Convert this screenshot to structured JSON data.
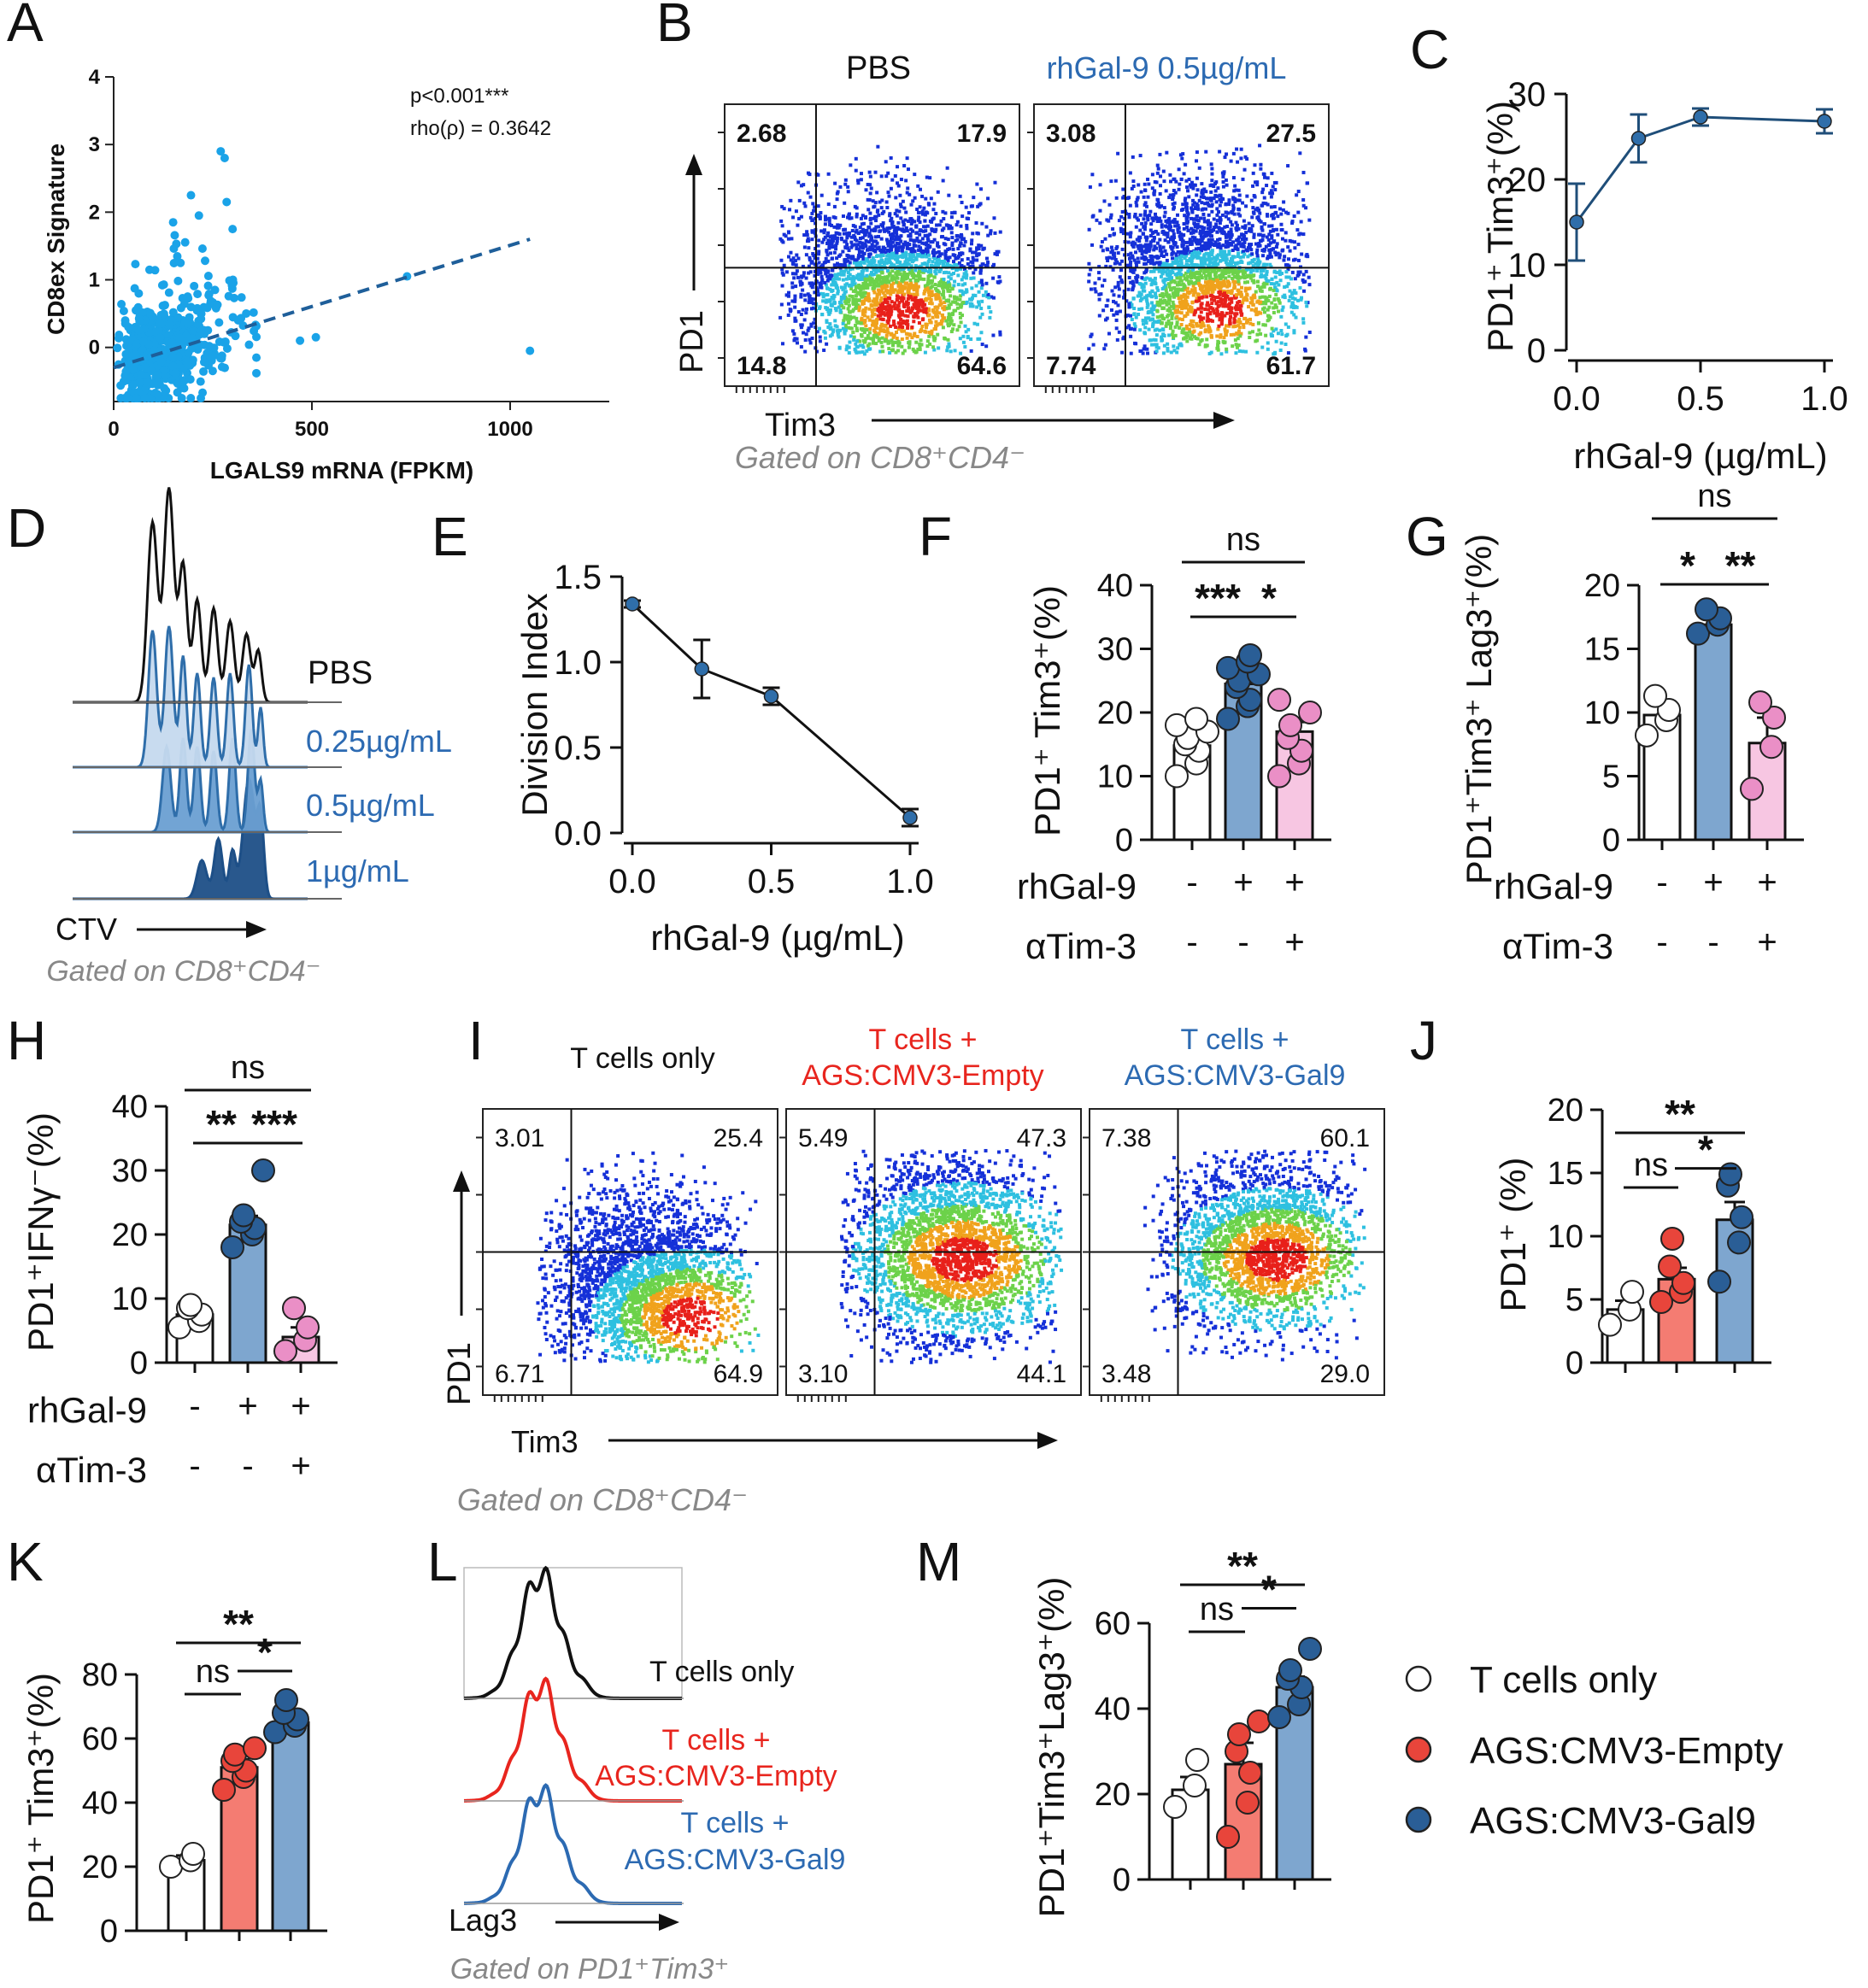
{
  "figure": {
    "panels": [
      "A",
      "B",
      "C",
      "D",
      "E",
      "F",
      "G",
      "H",
      "I",
      "J",
      "K",
      "L",
      "M"
    ]
  },
  "colors": {
    "scatter_blue": "#1aa3e8",
    "trend_blue": "#1f5f9a",
    "line_navy": "#1f4e79",
    "light_blue_fill": "#c5d9ee",
    "mid_blue_fill": "#6a9fd2",
    "dark_blue_fill": "#1d4f87",
    "bar_blue": "#7ea6cf",
    "dot_blue": "#2a5e96",
    "bar_pink": "#f7c6e2",
    "dot_pink": "#ea8fc6",
    "bar_red": "#f47c72",
    "dot_red": "#e8453b",
    "red_line": "#e8251e",
    "blue_line": "#2c6ab2",
    "gray_text": "#888888"
  },
  "chart_data": [
    {
      "panel": "A",
      "type": "scatter",
      "xlabel": "LGALS9 mRNA (FPKM)",
      "ylabel": "CD8ex Signature",
      "xticks": [
        "0",
        "500",
        "1000"
      ],
      "yticks": [
        "0",
        "1",
        "2",
        "3",
        "4"
      ],
      "xlim": [
        0,
        1250
      ],
      "ylim": [
        -0.8,
        4
      ],
      "annotation_p": "p<0.001***",
      "annotation_rho": "rho(ρ) = 0.3642",
      "trend": {
        "x": [
          0,
          1050
        ],
        "y": [
          -0.3,
          1.6
        ]
      },
      "outliers": [
        [
          1050,
          -0.05
        ],
        [
          740,
          1.05
        ],
        [
          510,
          0.15
        ],
        [
          470,
          0.1
        ]
      ]
    },
    {
      "panel": "C",
      "type": "line",
      "xlabel": "rhGal-9 (µg/mL)",
      "ylabel": "PD1⁺ Tim3⁺(%)",
      "xticks": [
        "0.0",
        "0.5",
        "1.0"
      ],
      "yticks": [
        "0",
        "10",
        "20",
        "30"
      ],
      "xlim": [
        0,
        1
      ],
      "ylim": [
        0,
        30
      ],
      "x": [
        0,
        0.25,
        0.5,
        1.0
      ],
      "y": [
        15,
        24.8,
        27.3,
        26.8
      ],
      "err": [
        4.5,
        2.8,
        1.0,
        1.4
      ]
    },
    {
      "panel": "E",
      "type": "line",
      "xlabel": "rhGal-9 (µg/mL)",
      "ylabel": "Division Index",
      "xticks": [
        "0.0",
        "0.5",
        "1.0"
      ],
      "yticks": [
        "0.0",
        "0.5",
        "1.0",
        "1.5"
      ],
      "xlim": [
        0,
        1
      ],
      "ylim": [
        0,
        1.5
      ],
      "x": [
        0,
        0.25,
        0.5,
        1.0
      ],
      "y": [
        1.34,
        0.96,
        0.8,
        0.09
      ],
      "err": [
        0.02,
        0.17,
        0.05,
        0.05
      ]
    },
    {
      "panel": "F",
      "type": "bar",
      "ylabel": "PD1⁺ Tim3⁺(%)",
      "yticks": [
        "0",
        "10",
        "20",
        "30",
        "40"
      ],
      "ylim": [
        0,
        40
      ],
      "values": [
        14.8,
        24.5,
        17
      ],
      "err": [
        1.3,
        1.4,
        1.5
      ],
      "points": [
        [
          10,
          12,
          14,
          15,
          16,
          17,
          18,
          19
        ],
        [
          19,
          21,
          22,
          24,
          25,
          26,
          27,
          28,
          29
        ],
        [
          10,
          12,
          14,
          16,
          18,
          20,
          22
        ]
      ],
      "row1_label": "rhGal-9",
      "row1": [
        "-",
        "+",
        "+"
      ],
      "row2_label": "αTim-3",
      "row2": [
        "-",
        "-",
        "+"
      ],
      "sigs": [
        {
          "from": 0,
          "to": 2,
          "label": "ns",
          "level": 2
        },
        {
          "from": 0,
          "to": 1,
          "label": "***",
          "level": 1
        },
        {
          "from": 1,
          "to": 2,
          "label": "*",
          "level": 1
        }
      ]
    },
    {
      "panel": "G",
      "type": "bar",
      "ylabel": "PD1⁺Tim3⁺ Lag3⁺(%)",
      "yticks": [
        "0",
        "5",
        "10",
        "15",
        "20"
      ],
      "ylim": [
        0,
        20
      ],
      "values": [
        9.8,
        16.9,
        7.6
      ],
      "err": [
        1.0,
        0.4,
        2.0
      ],
      "points": [
        [
          8.2,
          9.4,
          10.2,
          11.3
        ],
        [
          16.2,
          16.9,
          17.4,
          18.1
        ],
        [
          4.0,
          7.3,
          9.6,
          10.8
        ]
      ],
      "row1_label": "rhGal-9",
      "row1": [
        "-",
        "+",
        "+"
      ],
      "row2_label": "αTim-3",
      "row2": [
        "-",
        "-",
        "+"
      ],
      "sigs": [
        {
          "from": 0,
          "to": 2,
          "label": "ns",
          "level": 2
        },
        {
          "from": 0,
          "to": 1,
          "label": "*",
          "level": 1
        },
        {
          "from": 1,
          "to": 2,
          "label": "**",
          "level": 1
        }
      ]
    },
    {
      "panel": "H",
      "type": "bar",
      "ylabel": "PD1⁺IFNγ⁻(%)",
      "yticks": [
        "0",
        "10",
        "20",
        "30",
        "40"
      ],
      "ylim": [
        0,
        40
      ],
      "values": [
        7.5,
        21.5,
        4.0
      ],
      "err": [
        1.0,
        1.4,
        1.5
      ],
      "points": [
        [
          5.5,
          6.5,
          7.5,
          8.5,
          9.0
        ],
        [
          18,
          20,
          21,
          22,
          23,
          30
        ],
        [
          1.8,
          3.5,
          5.5,
          8.5
        ]
      ],
      "row1_label": "rhGal-9",
      "row1": [
        "-",
        "+",
        "+"
      ],
      "row2_label": "αTim-3",
      "row2": [
        "-",
        "-",
        "+"
      ],
      "sigs": [
        {
          "from": 0,
          "to": 2,
          "label": "ns",
          "level": 2
        },
        {
          "from": 0,
          "to": 1,
          "label": "**",
          "level": 1
        },
        {
          "from": 1,
          "to": 2,
          "label": "***",
          "level": 1
        }
      ]
    },
    {
      "panel": "J",
      "type": "bar",
      "ylabel": "PD1⁺ (%)",
      "yticks": [
        "0",
        "5",
        "10",
        "15",
        "20"
      ],
      "ylim": [
        0,
        20
      ],
      "values": [
        4.2,
        6.6,
        11.3
      ],
      "err": [
        0.7,
        0.9,
        1.4
      ],
      "points": [
        [
          3.0,
          4.2,
          5.6
        ],
        [
          4.8,
          5.6,
          6.3,
          7.6,
          9.8
        ],
        [
          6.4,
          9.5,
          11.5,
          14.0,
          14.9
        ]
      ],
      "sigs": [
        {
          "from": 0,
          "to": 2,
          "label": "**",
          "level": 2
        },
        {
          "from": 0,
          "to": 1,
          "label": "ns",
          "level": 1
        },
        {
          "from": 1,
          "to": 2,
          "label": "*",
          "level": 1.35
        }
      ]
    },
    {
      "panel": "K",
      "type": "bar",
      "ylabel": "PD1⁺ Tim3⁺(%)",
      "yticks": [
        "0",
        "20",
        "40",
        "60",
        "80"
      ],
      "ylim": [
        0,
        80
      ],
      "values": [
        22,
        51,
        65
      ],
      "err": [
        1.5,
        2.5,
        1.5
      ],
      "points": [
        [
          20,
          22,
          24
        ],
        [
          44,
          48,
          50,
          53,
          55,
          57
        ],
        [
          62,
          64,
          66,
          68,
          72
        ]
      ],
      "sigs": [
        {
          "from": 0,
          "to": 2,
          "label": "**",
          "level": 2
        },
        {
          "from": 0,
          "to": 1,
          "label": "ns",
          "level": 1
        },
        {
          "from": 1,
          "to": 2,
          "label": "*",
          "level": 1.45
        }
      ]
    },
    {
      "panel": "M",
      "type": "bar",
      "ylabel": "PD1⁺Tim3⁺Lag3⁺(%)",
      "yticks": [
        "0",
        "20",
        "40",
        "60"
      ],
      "ylim": [
        0,
        60
      ],
      "values": [
        21,
        27,
        45
      ],
      "err": [
        3,
        5,
        2.5
      ],
      "points": [
        [
          17,
          22,
          28
        ],
        [
          10,
          18,
          25,
          30,
          34,
          37
        ],
        [
          38,
          41,
          45,
          47,
          49,
          54
        ]
      ],
      "sigs": [
        {
          "from": 0,
          "to": 2,
          "label": "**",
          "level": 2
        },
        {
          "from": 0,
          "to": 1,
          "label": "ns",
          "level": 1
        },
        {
          "from": 1,
          "to": 2,
          "label": "*",
          "level": 1.5
        }
      ]
    }
  ],
  "panelB": {
    "title_left": "PBS",
    "title_right": "rhGal-9 0.5µg/mL",
    "axis_y": "PD1",
    "axis_x": "Tim3",
    "gated": "Gated on CD8⁺CD4⁻",
    "plots": [
      {
        "ul": "2.68",
        "ur": "17.9",
        "ll": "14.8",
        "lr": "64.6"
      },
      {
        "ul": "3.08",
        "ur": "27.5",
        "ll": "7.74",
        "lr": "61.7"
      }
    ]
  },
  "panelD": {
    "labels": [
      "PBS",
      "0.25µg/mL",
      "0.5µg/mL",
      "1µg/mL"
    ],
    "axis_x": "CTV",
    "gated": "Gated on CD8⁺CD4⁻"
  },
  "panelI": {
    "titles": [
      {
        "line1": "T cells only",
        "line2": ""
      },
      {
        "line1": "T cells +",
        "line2": "AGS:CMV3-Empty"
      },
      {
        "line1": "T cells +",
        "line2": "AGS:CMV3-Gal9"
      }
    ],
    "axis_y": "PD1",
    "axis_x": "Tim3",
    "gated": "Gated on CD8⁺CD4⁻",
    "plots": [
      {
        "ul": "3.01",
        "ur": "25.4",
        "ll": "6.71",
        "lr": "64.9"
      },
      {
        "ul": "5.49",
        "ur": "47.3",
        "ll": "3.10",
        "lr": "44.1"
      },
      {
        "ul": "7.38",
        "ur": "60.1",
        "ll": "3.48",
        "lr": "29.0"
      }
    ]
  },
  "panelL": {
    "labels": [
      {
        "line1": "T cells only",
        "line2": ""
      },
      {
        "line1": "T cells +",
        "line2": "AGS:CMV3-Empty"
      },
      {
        "line1": "T cells +",
        "line2": "AGS:CMV3-Gal9"
      }
    ],
    "axis_x": "Lag3",
    "gated": "Gated on PD1⁺Tim3⁺"
  },
  "legend": {
    "items": [
      "T cells only",
      "AGS:CMV3-Empty",
      "AGS:CMV3-Gal9"
    ]
  }
}
